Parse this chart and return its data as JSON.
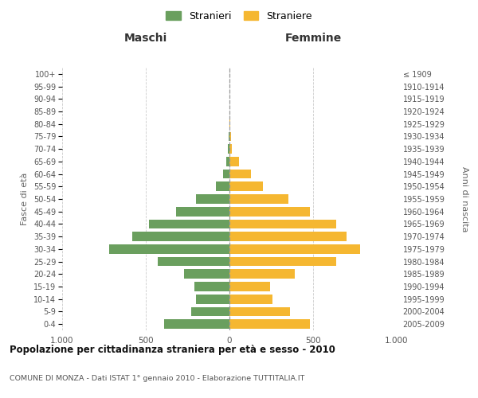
{
  "age_groups": [
    "100+",
    "95-99",
    "90-94",
    "85-89",
    "80-84",
    "75-79",
    "70-74",
    "65-69",
    "60-64",
    "55-59",
    "50-54",
    "45-49",
    "40-44",
    "35-39",
    "30-34",
    "25-29",
    "20-24",
    "15-19",
    "10-14",
    "5-9",
    "0-4"
  ],
  "birth_years": [
    "≤ 1909",
    "1910-1914",
    "1915-1919",
    "1920-1924",
    "1925-1929",
    "1930-1934",
    "1935-1939",
    "1940-1944",
    "1945-1949",
    "1950-1954",
    "1955-1959",
    "1960-1964",
    "1965-1969",
    "1970-1974",
    "1975-1979",
    "1980-1984",
    "1985-1989",
    "1990-1994",
    "1995-1999",
    "2000-2004",
    "2005-2009"
  ],
  "maschi": [
    0,
    0,
    0,
    0,
    2,
    5,
    8,
    20,
    40,
    80,
    200,
    320,
    480,
    580,
    720,
    430,
    270,
    210,
    200,
    230,
    390
  ],
  "femmine": [
    0,
    0,
    0,
    2,
    3,
    8,
    15,
    55,
    130,
    200,
    350,
    480,
    640,
    700,
    780,
    640,
    390,
    245,
    255,
    360,
    480
  ],
  "maschi_color": "#6a9f5e",
  "femmine_color": "#f5b731",
  "background_color": "#ffffff",
  "grid_color": "#cccccc",
  "title": "Popolazione per cittadinanza straniera per età e sesso - 2010",
  "subtitle": "COMUNE DI MONZA - Dati ISTAT 1° gennaio 2010 - Elaborazione TUTTITALIA.IT",
  "ylabel_left": "Fasce di età",
  "ylabel_right": "Anni di nascita",
  "xlabel_left": "Maschi",
  "xlabel_right": "Femmine",
  "legend_maschi": "Stranieri",
  "legend_femmine": "Straniere",
  "xlim": 1000,
  "bar_height": 0.75
}
